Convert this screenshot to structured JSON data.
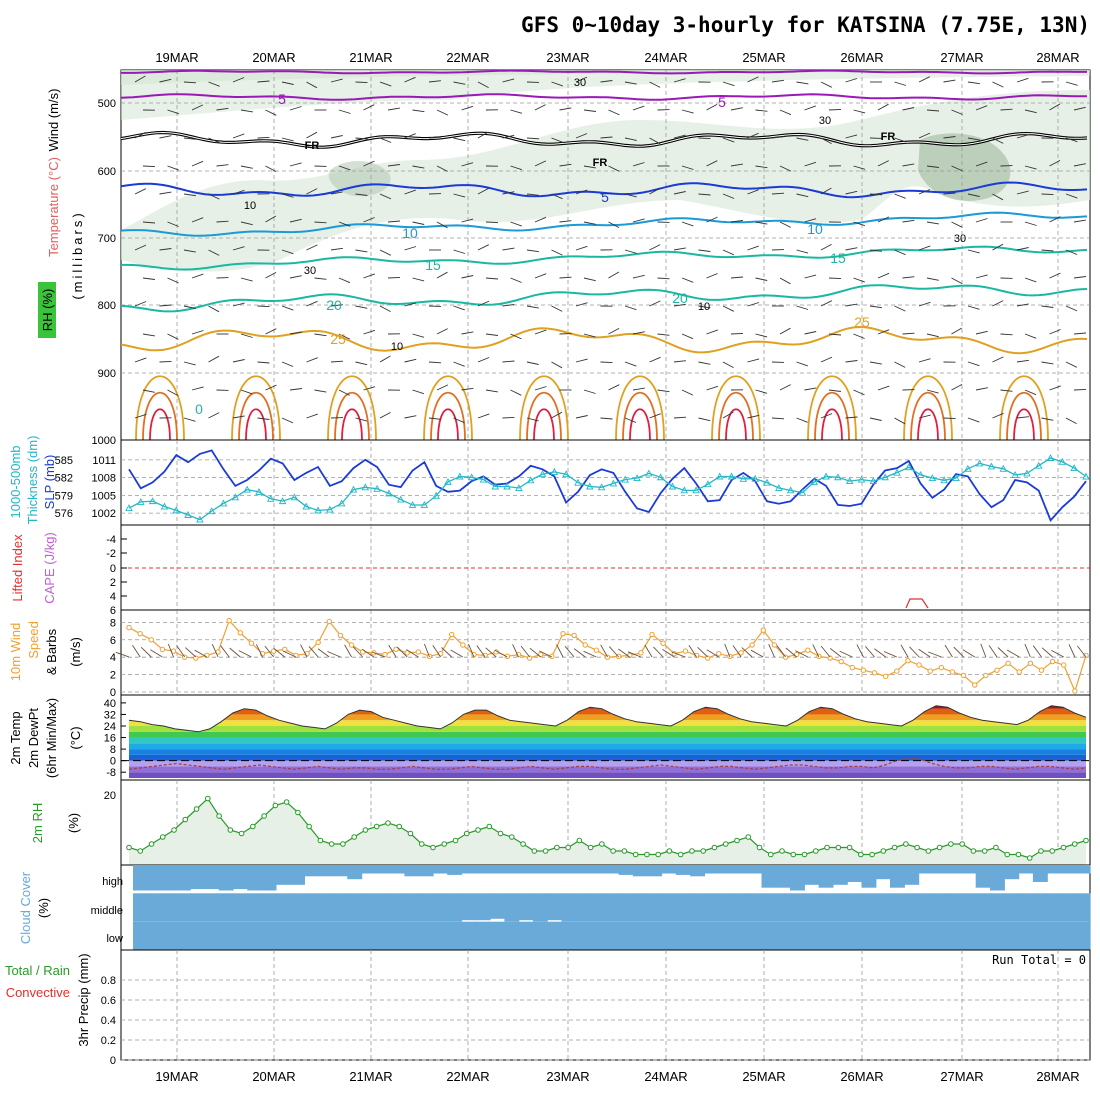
{
  "title": "GFS 0~10day 3-hourly for KATSINA (7.75E, 13N)",
  "dates": [
    "19MAR",
    "20MAR",
    "21MAR",
    "22MAR",
    "23MAR",
    "24MAR",
    "25MAR",
    "26MAR",
    "27MAR",
    "28MAR"
  ],
  "colors": {
    "slp": "#1a3bd6",
    "thickness": "#22b8c8",
    "wind_speed": "#f0a030",
    "wind_barb": "#6a5040",
    "rh2m": "#2a9a2a",
    "cloud": "#6aaad8",
    "cape": "#c060d0",
    "lifted": "#e03030",
    "temp_purple": "#9a1ab8",
    "temp_blue": "#1a3bd6",
    "temp_cyan": "#1a9ad6",
    "temp_teal": "#1ab8a0",
    "temp_orange": "#e0a020",
    "temp_red": "#e02040",
    "freezing": "#000000"
  },
  "labels": {
    "upper": [
      "Wind (m/s)",
      "Temperature (°C)",
      "RH (%)",
      "(millibars)"
    ],
    "slp": [
      "1000-500mb",
      "Thickness (dm)",
      "SLP (mb)"
    ],
    "cape": [
      "Lifted Index",
      "CAPE (J/kg)"
    ],
    "wind10": [
      "10m Wind",
      "Speed",
      "& Barbs",
      "(m/s)"
    ],
    "temp2m": [
      "2m Temp",
      "2m DewPt",
      "(6hr Min/Max)",
      "(°C)"
    ],
    "rh2m": [
      "2m RH",
      "(%)"
    ],
    "cloud": [
      "Cloud Cover",
      "(%)"
    ],
    "precip": [
      "Total / Rain",
      "Convective",
      "3hr Precip (mm)"
    ],
    "cloud_levels": [
      "high",
      "middle",
      "low"
    ],
    "run_total": "Run Total = 0",
    "freezing_label": "FR"
  },
  "axes": {
    "pressure_ticks": [
      "500",
      "600",
      "700",
      "800",
      "900",
      "1000"
    ],
    "slp_ticks": [
      "1011",
      "1008",
      "1005",
      "1002"
    ],
    "thickness_ticks": [
      "585",
      "582",
      "579",
      "576"
    ],
    "lifted_ticks": [
      "-4",
      "-2",
      "0",
      "2",
      "4",
      "6"
    ],
    "wind_ticks": [
      "8",
      "6",
      "4",
      "2",
      "0"
    ],
    "temp_ticks": [
      "40",
      "32",
      "24",
      "16",
      "8",
      "0",
      "-8"
    ],
    "rh_ticks": [
      "20"
    ],
    "precip_ticks": [
      "0.8",
      "0.6",
      "0.4",
      "0.2",
      "0"
    ]
  },
  "isotherm_labels": [
    "5",
    "5",
    "5",
    "10",
    "10",
    "15",
    "15",
    "20",
    "20",
    "25",
    "25",
    "0"
  ],
  "rh_contour_labels": [
    "30",
    "30",
    "10",
    "30",
    "10",
    "30",
    "10"
  ],
  "chart_data": {
    "type": "line",
    "x_start": "18MAR 18Z",
    "x_step_hours": 3,
    "slp_mb": [
      1009.4,
      1006.2,
      1007.2,
      1009.0,
      1011.8,
      1010.6,
      1012.0,
      1012.6,
      1009.4,
      1006.6,
      1007.6,
      1009.2,
      1011.2,
      1010.4,
      1007.6,
      1008.8,
      1009.8,
      1006.6,
      1007.4,
      1009.6,
      1011.0,
      1009.8,
      1006.8,
      1006.4,
      1009.2,
      1010.6,
      1006.6,
      1005.6,
      1005.8,
      1007.4,
      1008.2,
      1006.8,
      1007.0,
      1008.2,
      1010.0,
      1009.4,
      1008.2,
      1003.8,
      1005.6,
      1008.4,
      1009.4,
      1008.8,
      1005.6,
      1002.8,
      1002.2,
      1005.4,
      1007.8,
      1009.6,
      1007.0,
      1004.0,
      1004.2,
      1007.6,
      1008.8,
      1007.4,
      1004.0,
      1003.6,
      1004.0,
      1006.0,
      1007.8,
      1006.6,
      1003.4,
      1003.2,
      1003.6,
      1006.8,
      1009.2,
      1009.6,
      1010.8,
      1007.0,
      1004.6,
      1006.0,
      1008.6,
      1008.2,
      1005.2,
      1003.0,
      1004.2,
      1007.6,
      1007.2,
      1005.8,
      1000.8,
      1003.0,
      1004.8,
      1007.4
    ],
    "thickness_dm": [
      578.2,
      579.0,
      579.1,
      578.4,
      577.9,
      577.3,
      576.7,
      577.8,
      578.8,
      579.6,
      580.6,
      580.3,
      579.4,
      579.1,
      579.6,
      578.4,
      577.9,
      578.0,
      578.8,
      580.6,
      580.9,
      580.7,
      580.1,
      579.3,
      578.6,
      578.6,
      579.8,
      581.6,
      582.3,
      582.2,
      581.9,
      581.0,
      581.0,
      580.8,
      581.8,
      582.6,
      582.9,
      582.6,
      581.5,
      581.0,
      580.9,
      581.4,
      581.9,
      582.1,
      582.7,
      582.2,
      581.0,
      580.5,
      580.5,
      581.3,
      582.3,
      582.3,
      582.0,
      582.0,
      581.5,
      580.8,
      580.5,
      580.2,
      581.6,
      582.3,
      582.2,
      581.7,
      581.9,
      581.7,
      582.2,
      582.8,
      583.5,
      582.5,
      582.1,
      581.8,
      582.1,
      583.3,
      584.0,
      583.6,
      583.3,
      582.5,
      582.7,
      583.7,
      584.7,
      584.2,
      583.4,
      582.3
    ],
    "wind10_speed_ms": [
      7.4,
      6.7,
      6.0,
      4.9,
      4.7,
      4.0,
      3.9,
      4.2,
      4.6,
      8.2,
      6.8,
      5.6,
      4.4,
      4.7,
      4.9,
      4.2,
      4.4,
      5.7,
      8.1,
      6.5,
      5.4,
      4.6,
      4.5,
      4.3,
      4.9,
      4.5,
      4.6,
      4.1,
      4.4,
      6.6,
      5.4,
      4.3,
      4.2,
      4.6,
      4.1,
      4.3,
      3.9,
      4.3,
      4.1,
      6.7,
      6.5,
      5.4,
      4.8,
      4.0,
      4.1,
      4.2,
      4.5,
      6.6,
      5.6,
      4.4,
      4.7,
      4.2,
      3.9,
      4.4,
      4.1,
      4.5,
      5.4,
      7.1,
      5.4,
      4.0,
      4.3,
      4.8,
      4.1,
      3.9,
      3.5,
      2.8,
      2.5,
      2.2,
      1.8,
      2.4,
      3.6,
      3.1,
      2.4,
      2.8,
      2.3,
      1.9,
      0.8,
      1.9,
      2.5,
      3.3,
      2.3,
      3.3,
      2.5,
      3.5,
      3.1,
      0.1,
      4.2
    ],
    "temp2m_c": [
      28,
      27,
      25,
      24,
      22,
      21,
      20,
      22,
      27,
      33,
      36,
      35,
      31,
      28,
      26,
      24,
      23,
      22,
      26,
      32,
      35,
      34,
      30,
      28,
      26,
      24,
      23,
      22,
      26,
      32,
      35,
      35,
      31,
      28,
      27,
      26,
      25,
      24,
      28,
      34,
      37,
      36,
      32,
      29,
      27,
      26,
      25,
      24,
      28,
      34,
      37,
      36,
      32,
      29,
      27,
      26,
      25,
      24,
      28,
      34,
      37,
      36,
      32,
      29,
      27,
      26,
      25,
      24,
      28,
      34,
      38,
      37,
      33,
      30,
      28,
      27,
      26,
      25,
      28,
      34,
      38,
      37,
      33,
      30
    ],
    "dewpt2m_c": [
      -6,
      -5,
      -4,
      -3,
      -2,
      -3,
      -4,
      -5,
      -6,
      -5,
      -4,
      -3,
      -4,
      -5,
      -6,
      -5,
      -4,
      -5,
      -6,
      -5,
      -5,
      -6,
      -6,
      -5,
      -4,
      -5,
      -6,
      -6,
      -5,
      -4,
      -5,
      -6,
      -6,
      -5,
      -4,
      -5,
      -6,
      -5,
      -4,
      -4,
      -5,
      -6,
      -6,
      -5,
      -4,
      -3,
      -4,
      -5,
      -6,
      -5,
      -4,
      -4,
      -5,
      -6,
      -5,
      -4,
      -3,
      -3,
      -4,
      -5,
      -5,
      -4,
      -4,
      -5,
      -3,
      0,
      2,
      1,
      -2,
      -4,
      -5,
      -5,
      -4,
      -4,
      -5,
      -6,
      -5,
      -4,
      -4,
      -5,
      -6,
      -5
    ],
    "rh2m_pct": [
      5,
      4,
      6,
      8,
      10,
      13,
      16,
      19,
      14,
      10,
      9,
      11,
      14,
      17,
      18,
      15,
      11,
      7,
      6,
      6,
      8,
      10,
      11,
      12,
      11,
      9,
      6,
      5,
      6,
      7,
      9,
      10,
      11,
      9,
      8,
      6,
      4,
      4,
      5,
      5,
      7,
      5,
      6,
      4,
      4,
      3,
      3,
      3,
      4,
      3,
      4,
      4,
      5,
      6,
      7,
      8,
      5,
      3,
      4,
      3,
      3,
      4,
      5,
      5,
      5,
      3,
      3,
      4,
      5,
      6,
      5,
      4,
      5,
      6,
      6,
      4,
      4,
      5,
      3,
      3,
      2,
      4,
      4,
      5,
      6,
      7
    ],
    "cloud_high_pct": [
      90,
      90,
      90,
      90,
      85,
      85,
      90,
      85,
      90,
      90,
      70,
      70,
      40,
      40,
      40,
      50,
      30,
      30,
      30,
      40,
      40,
      30,
      35,
      30,
      30,
      30,
      30,
      30,
      30,
      30,
      30,
      30,
      30,
      30,
      35,
      40,
      40,
      30,
      35,
      40,
      30,
      30,
      30,
      30,
      80,
      80,
      90,
      70,
      80,
      70,
      60,
      80,
      50,
      80,
      70,
      30,
      30,
      30,
      30,
      80,
      90,
      50,
      30,
      60,
      30,
      30,
      30
    ],
    "cloud_middle_pct": [
      100,
      100,
      100,
      100,
      100,
      100,
      100,
      100,
      100,
      100,
      100,
      100,
      100,
      100,
      100,
      100,
      100,
      100,
      100,
      100,
      100,
      100,
      100,
      95,
      95,
      90,
      100,
      95,
      100,
      95,
      100,
      100,
      100,
      100,
      100,
      100,
      100,
      100,
      100,
      100,
      100,
      100,
      100,
      100,
      100,
      100,
      100,
      100,
      100,
      100,
      100,
      100,
      100,
      100,
      100,
      100,
      100,
      100,
      100,
      100,
      100,
      100,
      100,
      100,
      100,
      100,
      100
    ],
    "cloud_low_pct": [
      100,
      100,
      100,
      100,
      100,
      100,
      100,
      100,
      100,
      100,
      100,
      100,
      100,
      100,
      100,
      100,
      100,
      100,
      100,
      100,
      100,
      100,
      100,
      100,
      100,
      100,
      100,
      100,
      100,
      100,
      100,
      100,
      100,
      100,
      100,
      100,
      100,
      100,
      100,
      100,
      100,
      100,
      100,
      100,
      100,
      100,
      100,
      100,
      100,
      100,
      100,
      100,
      100,
      100,
      100,
      100,
      100,
      100,
      100,
      100,
      100,
      100,
      100,
      100,
      100,
      100,
      100
    ],
    "precip_3hr_mm": [
      0,
      0,
      0,
      0,
      0,
      0,
      0,
      0,
      0,
      0,
      0,
      0,
      0,
      0,
      0,
      0,
      0,
      0,
      0,
      0,
      0,
      0,
      0,
      0,
      0,
      0,
      0,
      0,
      0,
      0,
      0,
      0,
      0,
      0,
      0,
      0,
      0,
      0,
      0,
      0,
      0,
      0,
      0,
      0,
      0,
      0,
      0,
      0,
      0,
      0,
      0,
      0,
      0,
      0,
      0,
      0,
      0,
      0,
      0,
      0,
      0,
      0,
      0,
      0,
      0,
      0,
      0,
      0,
      0,
      0,
      0,
      0,
      0,
      0,
      0,
      0,
      0,
      0,
      0,
      0,
      0,
      0
    ],
    "slp_range_mb": [
      1000,
      1013
    ],
    "thickness_range_dm": [
      576,
      586
    ],
    "wind_range_ms": [
      0,
      8.5
    ],
    "temp_range_c": [
      -12,
      42
    ],
    "precip_range_mm": [
      0,
      1.0
    ],
    "grid": true
  }
}
